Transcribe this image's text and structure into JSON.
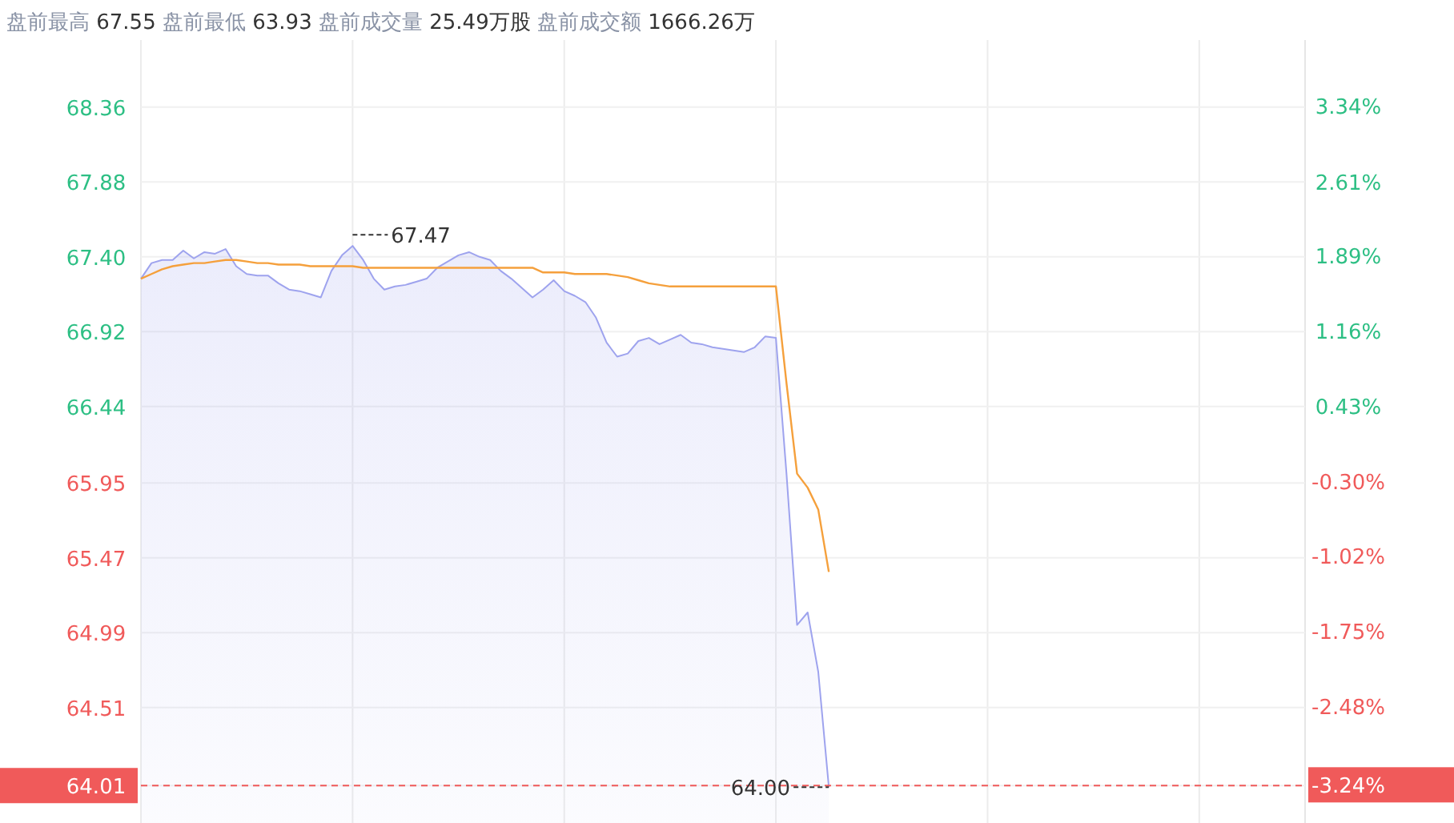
{
  "chart_data": {
    "type": "area",
    "title": "盘前最高 67.55 盘前最低 63.93 盘前成交量 25.49万股 盘前成交额 1666.26万",
    "categories": [
      null,
      null,
      null,
      null,
      null,
      null,
      null,
      null,
      null,
      null,
      null,
      null,
      null,
      null,
      null,
      null,
      null,
      null,
      null,
      null,
      null,
      null,
      null,
      null,
      null,
      null,
      null,
      null,
      null,
      null,
      null,
      null,
      null,
      null,
      null,
      null,
      null,
      null,
      null,
      null,
      null,
      null,
      null,
      null,
      null,
      null,
      null,
      null,
      null,
      null,
      null,
      null,
      null,
      null,
      null,
      null,
      null,
      null,
      null,
      null,
      null,
      null,
      null,
      null,
      null,
      null,
      null,
      null,
      null,
      null,
      null,
      null,
      null,
      null,
      null,
      null,
      null,
      null,
      null,
      null,
      null,
      null,
      null,
      null,
      null,
      null,
      null,
      null,
      null,
      null,
      null,
      null,
      null,
      null,
      null,
      null,
      null,
      null,
      null,
      null,
      null,
      null,
      null,
      null,
      null,
      null,
      null,
      null,
      null,
      null,
      null
    ],
    "series": [
      {
        "color": "#9ea3ee",
        "values": [
          67.26,
          67.36,
          67.38,
          67.38,
          67.44,
          67.39,
          67.43,
          67.42,
          67.45,
          67.34,
          67.29,
          67.28,
          67.28,
          67.23,
          67.19,
          67.18,
          67.16,
          67.14,
          67.31,
          67.41,
          67.47,
          67.38,
          67.26,
          67.19,
          67.21,
          67.22,
          67.24,
          67.26,
          67.33,
          67.37,
          67.41,
          67.43,
          67.4,
          67.38,
          67.31,
          67.26,
          67.2,
          67.14,
          67.19,
          67.25,
          67.18,
          67.15,
          67.11,
          67.01,
          66.85,
          66.76,
          66.78,
          66.86,
          66.88,
          66.84,
          66.87,
          66.9,
          66.85,
          66.84,
          66.82,
          66.81,
          66.8,
          66.79,
          66.82,
          66.89,
          66.88,
          66.01,
          65.04,
          65.12,
          64.74,
          64.0,
          null,
          null,
          null,
          null,
          null,
          null,
          null,
          null,
          null,
          null,
          null,
          null,
          null,
          null,
          null,
          null,
          null,
          null,
          null,
          null,
          null,
          null,
          null,
          null,
          null,
          null,
          null,
          null,
          null,
          null,
          null,
          null,
          null,
          null,
          null,
          null,
          null,
          null,
          null,
          null,
          null,
          null,
          null,
          null,
          null
        ]
      },
      {
        "type": "line",
        "color": "#f5a03c",
        "values": [
          67.26,
          67.29,
          67.32,
          67.34,
          67.35,
          67.36,
          67.36,
          67.37,
          67.38,
          67.38,
          67.37,
          67.36,
          67.36,
          67.35,
          67.35,
          67.35,
          67.34,
          67.34,
          67.34,
          67.34,
          67.34,
          67.33,
          67.33,
          67.33,
          67.33,
          67.33,
          67.33,
          67.33,
          67.33,
          67.33,
          67.33,
          67.33,
          67.33,
          67.33,
          67.33,
          67.33,
          67.33,
          67.33,
          67.3,
          67.3,
          67.3,
          67.29,
          67.29,
          67.29,
          67.29,
          67.28,
          67.27,
          67.25,
          67.23,
          67.22,
          67.21,
          67.21,
          67.21,
          67.21,
          67.21,
          67.21,
          67.21,
          67.21,
          67.21,
          67.21,
          67.21,
          66.59,
          66.01,
          65.92,
          65.78,
          65.38,
          null,
          null,
          null,
          null,
          null,
          null,
          null,
          null,
          null,
          null,
          null,
          null,
          null,
          null,
          null,
          null,
          null,
          null,
          null,
          null,
          null,
          null,
          null,
          null,
          null,
          null,
          null,
          null,
          null,
          null,
          null,
          null,
          null,
          null,
          null,
          null,
          null,
          null,
          null,
          null,
          null,
          null,
          null,
          null,
          null
        ]
      }
    ],
    "ylim": [
      63.77,
      68.79
    ],
    "yticks": [
      64.01,
      64.51,
      64.99,
      65.47,
      65.95,
      66.44,
      66.92,
      {
        "value": 67.4,
        "label": "67.40"
      },
      67.88,
      68.36
    ],
    "y2lim": [
      -3.61,
      3.98
    ],
    "y2ticks": [
      {
        "value": -3.24,
        "label": "-3.24%"
      },
      {
        "value": -2.48,
        "label": "-2.48%"
      },
      {
        "value": -1.75,
        "label": "-1.75%"
      },
      {
        "value": -1.02,
        "label": "-1.02%"
      },
      {
        "value": -0.3,
        "label": "-0.30%"
      },
      {
        "value": 0.43,
        "label": "0.43%"
      },
      {
        "value": 1.16,
        "label": "1.16%"
      },
      {
        "value": 1.89,
        "label": "1.89%"
      },
      {
        "value": 2.61,
        "label": "2.61%"
      },
      {
        "value": 3.34,
        "label": "3.34%"
      }
    ],
    "ref_lines": [
      {
        "axis": "y",
        "value": 64.01,
        "color": "#f05a5a",
        "line_style": "dashed"
      }
    ],
    "annotations": [
      "67.47",
      "64.00"
    ],
    "grid": true,
    "tick_labels": "y"
  }
}
